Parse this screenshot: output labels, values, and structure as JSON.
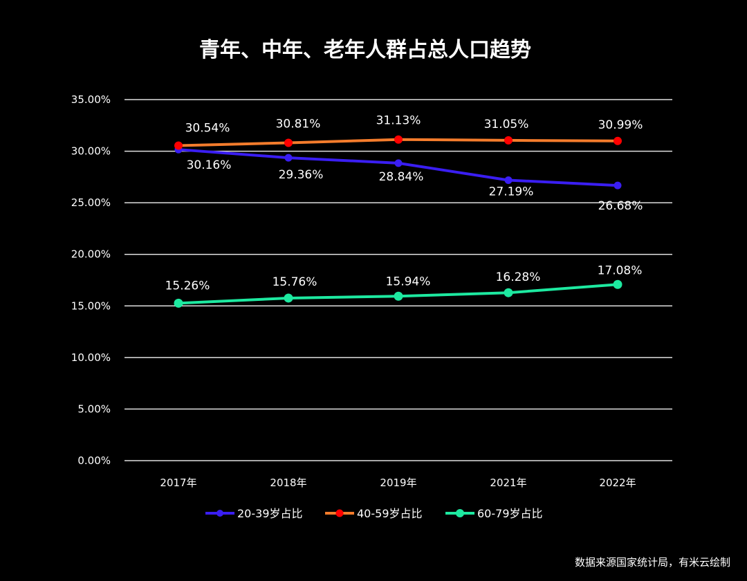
{
  "chart_data": {
    "type": "line",
    "title": "青年、中年、老年人群占总人口趋势",
    "categories": [
      "2017年",
      "2018年",
      "2019年",
      "2021年",
      "2022年"
    ],
    "ylim": [
      0,
      35
    ],
    "yticks": [
      0,
      5,
      10,
      15,
      20,
      25,
      30,
      35
    ],
    "ytick_labels": [
      "0.00%",
      "5.00%",
      "10.00%",
      "15.00%",
      "20.00%",
      "25.00%",
      "30.00%",
      "35.00%"
    ],
    "grid": "horizontal",
    "legend_position": "bottom",
    "series": [
      {
        "name": "20-39岁占比",
        "color": "#3a1ef2",
        "values": [
          30.16,
          29.36,
          28.84,
          27.19,
          26.68
        ],
        "labels": [
          "30.16%",
          "29.36%",
          "28.84%",
          "27.19%",
          "26.68%"
        ]
      },
      {
        "name": "40-59岁占比",
        "color": "#f47c2c",
        "marker_color": "#ff0000",
        "values": [
          30.54,
          30.81,
          31.13,
          31.05,
          30.99
        ],
        "labels": [
          "30.54%",
          "30.81%",
          "31.13%",
          "31.05%",
          "30.99%"
        ]
      },
      {
        "name": "60-79岁占比",
        "color": "#1de9a0",
        "values": [
          15.26,
          15.76,
          15.94,
          16.28,
          17.08
        ],
        "labels": [
          "15.26%",
          "15.76%",
          "15.94%",
          "16.28%",
          "17.08%"
        ]
      }
    ]
  },
  "source_note": "数据来源国家统计局，有米云绘制"
}
